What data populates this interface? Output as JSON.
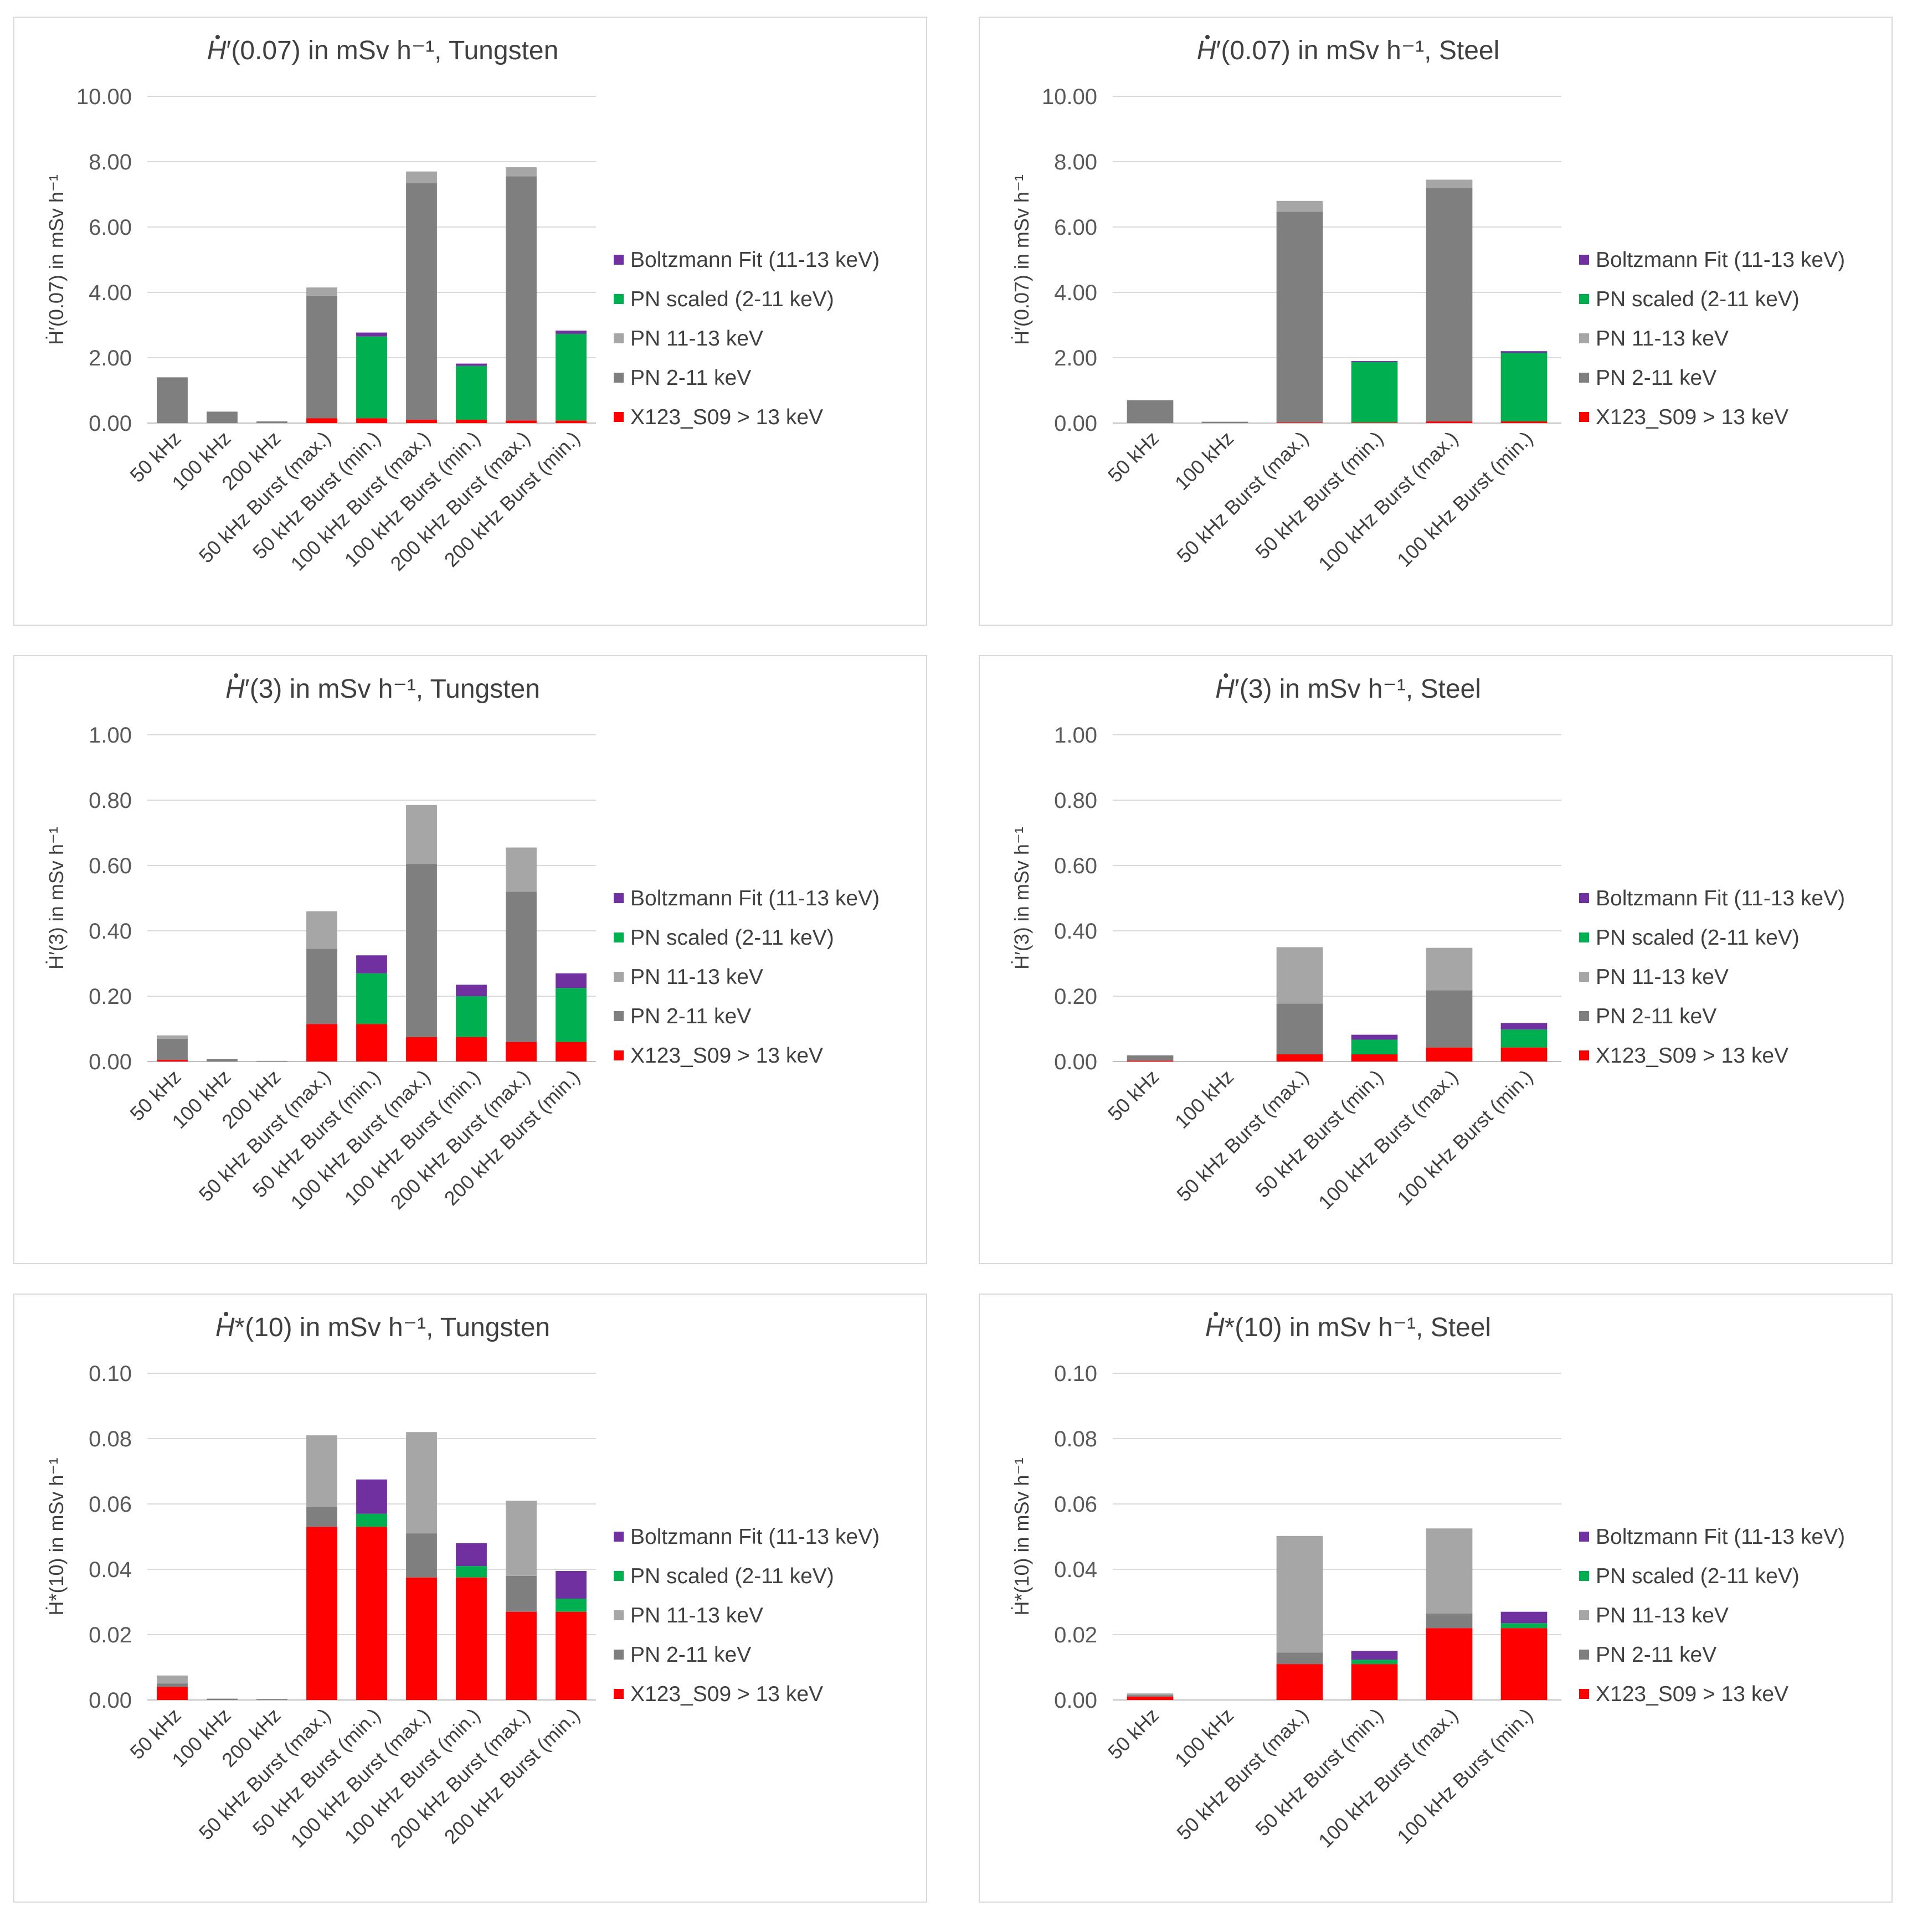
{
  "legend": [
    {
      "key": "boltz",
      "label": "Boltzmann Fit (11-13 keV)",
      "color": "#7030a0"
    },
    {
      "key": "pns",
      "label": "PN scaled (2-11 keV)",
      "color": "#00b050"
    },
    {
      "key": "pn1113",
      "label": "PN 11-13 keV",
      "color": "#a6a6a6"
    },
    {
      "key": "pn211",
      "label": "PN 2-11 keV",
      "color": "#7f7f7f"
    },
    {
      "key": "x123",
      "label": "X123_S09 > 13 keV",
      "color": "#ff0000"
    }
  ],
  "chart_data": [
    {
      "id": "h007-tungsten",
      "type": "bar",
      "stacked": true,
      "title_pre": "H",
      "title_post": "′(0.07) in mSv h⁻¹, Tungsten",
      "ylabel": "Ḣ′(0.07) in mSv h⁻¹",
      "ylim": [
        0,
        10
      ],
      "yticks": [
        "0.00",
        "2.00",
        "4.00",
        "6.00",
        "8.00",
        "10.00"
      ],
      "categories": [
        "50 kHz",
        "100 kHz",
        "200 kHz",
        "50 kHz Burst (max.)",
        "50 kHz Burst (min.)",
        "100 kHz Burst (max.)",
        "100 kHz Burst (min.)",
        "200 kHz Burst (max.)",
        "200 kHz Burst (min.)"
      ],
      "series": [
        {
          "key": "x123",
          "name": "X123_S09 > 13 keV",
          "values": [
            0,
            0,
            0,
            0.15,
            0.15,
            0.1,
            0.1,
            0.08,
            0.08
          ]
        },
        {
          "key": "pn211",
          "name": "PN 2-11 keV",
          "values": [
            1.4,
            0.35,
            0.05,
            3.75,
            0,
            7.25,
            0,
            7.47,
            0
          ]
        },
        {
          "key": "pn1113",
          "name": "PN 11-13 keV",
          "values": [
            0,
            0,
            0,
            0.25,
            0,
            0.35,
            0,
            0.28,
            0
          ]
        },
        {
          "key": "pns",
          "name": "PN scaled (2-11 keV)",
          "values": [
            0,
            0,
            0,
            0,
            2.5,
            0,
            1.65,
            0,
            2.65
          ]
        },
        {
          "key": "boltz",
          "name": "Boltzmann Fit (11-13 keV)",
          "values": [
            0,
            0,
            0,
            0,
            0.12,
            0,
            0.07,
            0,
            0.1
          ]
        }
      ]
    },
    {
      "id": "h007-steel",
      "type": "bar",
      "stacked": true,
      "title_pre": "H",
      "title_post": "′(0.07) in mSv h⁻¹, Steel",
      "ylabel": "Ḣ′(0.07) in mSv h⁻¹",
      "ylim": [
        0,
        10
      ],
      "yticks": [
        "0.00",
        "2.00",
        "4.00",
        "6.00",
        "8.00",
        "10.00"
      ],
      "categories": [
        "50 kHz",
        "100 kHz",
        "50 kHz Burst (max.)",
        "50 kHz Burst (min.)",
        "100 kHz Burst (max.)",
        "100 kHz Burst (min.)"
      ],
      "series": [
        {
          "key": "x123",
          "name": "X123_S09 > 13 keV",
          "values": [
            0,
            0,
            0.02,
            0.02,
            0.05,
            0.05
          ]
        },
        {
          "key": "pn211",
          "name": "PN 2-11 keV",
          "values": [
            0.7,
            0.04,
            6.45,
            0,
            7.15,
            0
          ]
        },
        {
          "key": "pn1113",
          "name": "PN 11-13 keV",
          "values": [
            0,
            0,
            0.33,
            0,
            0.25,
            0
          ]
        },
        {
          "key": "pns",
          "name": "PN scaled (2-11 keV)",
          "values": [
            0,
            0,
            0,
            1.85,
            0,
            2.1
          ]
        },
        {
          "key": "boltz",
          "name": "Boltzmann Fit (11-13 keV)",
          "values": [
            0,
            0,
            0,
            0.03,
            0,
            0.05
          ]
        }
      ]
    },
    {
      "id": "h3-tungsten",
      "type": "bar",
      "stacked": true,
      "title_pre": "H",
      "title_post": "′(3) in mSv h⁻¹, Tungsten",
      "ylabel": "Ḣ′(3) in mSv h⁻¹",
      "ylim": [
        0,
        1
      ],
      "yticks": [
        "0.00",
        "0.20",
        "0.40",
        "0.60",
        "0.80",
        "1.00"
      ],
      "categories": [
        "50 kHz",
        "100 kHz",
        "200 kHz",
        "50 kHz Burst (max.)",
        "50 kHz Burst (min.)",
        "100 kHz Burst (max.)",
        "100 kHz Burst (min.)",
        "200 kHz Burst (max.)",
        "200 kHz Burst (min.)"
      ],
      "series": [
        {
          "key": "x123",
          "name": "X123_S09 > 13 keV",
          "values": [
            0.005,
            0,
            0,
            0.115,
            0.115,
            0.075,
            0.075,
            0.06,
            0.06
          ]
        },
        {
          "key": "pn211",
          "name": "PN 2-11 keV",
          "values": [
            0.065,
            0.008,
            0.002,
            0.23,
            0,
            0.53,
            0,
            0.46,
            0
          ]
        },
        {
          "key": "pn1113",
          "name": "PN 11-13 keV",
          "values": [
            0.01,
            0,
            0,
            0.115,
            0,
            0.18,
            0,
            0.135,
            0
          ]
        },
        {
          "key": "pns",
          "name": "PN scaled (2-11 keV)",
          "values": [
            0,
            0,
            0,
            0,
            0.155,
            0,
            0.125,
            0,
            0.165
          ]
        },
        {
          "key": "boltz",
          "name": "Boltzmann Fit (11-13 keV)",
          "values": [
            0,
            0,
            0,
            0,
            0.055,
            0,
            0.035,
            0,
            0.045
          ]
        }
      ]
    },
    {
      "id": "h3-steel",
      "type": "bar",
      "stacked": true,
      "title_pre": "H",
      "title_post": "′(3) in mSv h⁻¹, Steel",
      "ylabel": "Ḣ′(3) in mSv h⁻¹",
      "ylim": [
        0,
        1
      ],
      "yticks": [
        "0.00",
        "0.20",
        "0.40",
        "0.60",
        "0.80",
        "1.00"
      ],
      "categories": [
        "50 kHz",
        "100 kHz",
        "50 kHz Burst (max.)",
        "50 kHz Burst (min.)",
        "100 kHz Burst (max.)",
        "100 kHz Burst (min.)"
      ],
      "series": [
        {
          "key": "x123",
          "name": "X123_S09 > 13 keV",
          "values": [
            0.003,
            0,
            0.022,
            0.022,
            0.043,
            0.043
          ]
        },
        {
          "key": "pn211",
          "name": "PN 2-11 keV",
          "values": [
            0.015,
            0,
            0.155,
            0,
            0.175,
            0
          ]
        },
        {
          "key": "pn1113",
          "name": "PN 11-13 keV",
          "values": [
            0.002,
            0,
            0.173,
            0,
            0.13,
            0
          ]
        },
        {
          "key": "pns",
          "name": "PN scaled (2-11 keV)",
          "values": [
            0,
            0,
            0,
            0.045,
            0,
            0.055
          ]
        },
        {
          "key": "boltz",
          "name": "Boltzmann Fit (11-13 keV)",
          "values": [
            0,
            0,
            0,
            0.015,
            0,
            0.02
          ]
        }
      ]
    },
    {
      "id": "h10-tungsten",
      "type": "bar",
      "stacked": true,
      "title_pre": "H",
      "title_post": "*(10) in mSv h⁻¹, Tungsten",
      "ylabel": "Ḣ*(10) in mSv h⁻¹",
      "ylim": [
        0,
        0.1
      ],
      "yticks": [
        "0.00",
        "0.02",
        "0.04",
        "0.06",
        "0.08",
        "0.10"
      ],
      "categories": [
        "50 kHz",
        "100 kHz",
        "200 kHz",
        "50 kHz Burst (max.)",
        "50 kHz Burst (min.)",
        "100 kHz Burst (max.)",
        "100 kHz Burst (min.)",
        "200 kHz Burst (max.)",
        "200 kHz Burst (min.)"
      ],
      "series": [
        {
          "key": "x123",
          "name": "X123_S09 > 13 keV",
          "values": [
            0.004,
            0,
            0,
            0.053,
            0.053,
            0.0375,
            0.0375,
            0.027,
            0.027
          ]
        },
        {
          "key": "pn211",
          "name": "PN 2-11 keV",
          "values": [
            0.001,
            0.0004,
            0.0003,
            0.006,
            0,
            0.0135,
            0,
            0.011,
            0
          ]
        },
        {
          "key": "pn1113",
          "name": "PN 11-13 keV",
          "values": [
            0.0025,
            0,
            0,
            0.022,
            0,
            0.031,
            0,
            0.023,
            0
          ]
        },
        {
          "key": "pns",
          "name": "PN scaled (2-11 keV)",
          "values": [
            0,
            0,
            0,
            0,
            0.004,
            0,
            0.0035,
            0,
            0.004
          ]
        },
        {
          "key": "boltz",
          "name": "Boltzmann Fit (11-13 keV)",
          "values": [
            0,
            0,
            0,
            0,
            0.0105,
            0,
            0.007,
            0,
            0.0085
          ]
        }
      ]
    },
    {
      "id": "h10-steel",
      "type": "bar",
      "stacked": true,
      "title_pre": "H",
      "title_post": "*(10) in mSv h⁻¹, Steel",
      "ylabel": "Ḣ*(10) in mSv h⁻¹",
      "ylim": [
        0,
        0.1
      ],
      "yticks": [
        "0.00",
        "0.02",
        "0.04",
        "0.06",
        "0.08",
        "0.10"
      ],
      "categories": [
        "50 kHz",
        "100 kHz",
        "50 kHz Burst (max.)",
        "50 kHz Burst (min.)",
        "100 kHz Burst (max.)",
        "100 kHz Burst (min.)"
      ],
      "series": [
        {
          "key": "x123",
          "name": "X123_S09 > 13 keV",
          "values": [
            0.001,
            0,
            0.011,
            0.011,
            0.022,
            0.022
          ]
        },
        {
          "key": "pn211",
          "name": "PN 2-11 keV",
          "values": [
            0.0005,
            0,
            0.0035,
            0,
            0.0045,
            0
          ]
        },
        {
          "key": "pn1113",
          "name": "PN 11-13 keV",
          "values": [
            0.0005,
            0,
            0.0357,
            0,
            0.026,
            0
          ]
        },
        {
          "key": "pns",
          "name": "PN scaled (2-11 keV)",
          "values": [
            0,
            0,
            0,
            0.0013,
            0,
            0.0015
          ]
        },
        {
          "key": "boltz",
          "name": "Boltzmann Fit (11-13 keV)",
          "values": [
            0,
            0,
            0,
            0.0027,
            0,
            0.0035
          ]
        }
      ]
    }
  ]
}
